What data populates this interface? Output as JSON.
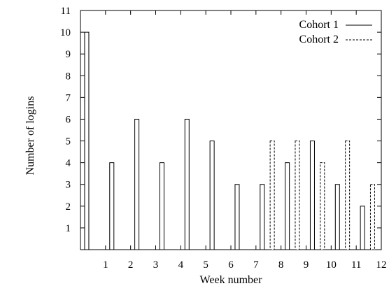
{
  "chart_data": {
    "type": "bar",
    "title": "",
    "xlabel": "Week number",
    "ylabel": "Number of logins",
    "ylim": [
      0,
      11
    ],
    "xlim": [
      0,
      12
    ],
    "yticks": [
      "1",
      "2",
      "3",
      "4",
      "5",
      "6",
      "7",
      "8",
      "9",
      "10",
      "11"
    ],
    "xticks": [
      "1",
      "2",
      "3",
      "4",
      "5",
      "6",
      "7",
      "8",
      "9",
      "10",
      "11",
      "12"
    ],
    "grid": false,
    "legend_position": "top-right",
    "series": [
      {
        "name": "Cohort 1",
        "line_style": "solid",
        "color": "#000000",
        "x": [
          0.25,
          1.25,
          2.25,
          3.25,
          4.25,
          5.25,
          6.25,
          7.25,
          8.25,
          9.25,
          10.25,
          11.25
        ],
        "values": [
          10,
          4,
          6,
          4,
          6,
          5,
          3,
          3,
          4,
          5,
          3,
          2
        ]
      },
      {
        "name": "Cohort 2",
        "line_style": "dashed",
        "color": "#000000",
        "x": [
          7.65,
          8.65,
          9.65,
          10.65,
          11.65
        ],
        "values": [
          5,
          5,
          4,
          5,
          3
        ]
      }
    ]
  }
}
